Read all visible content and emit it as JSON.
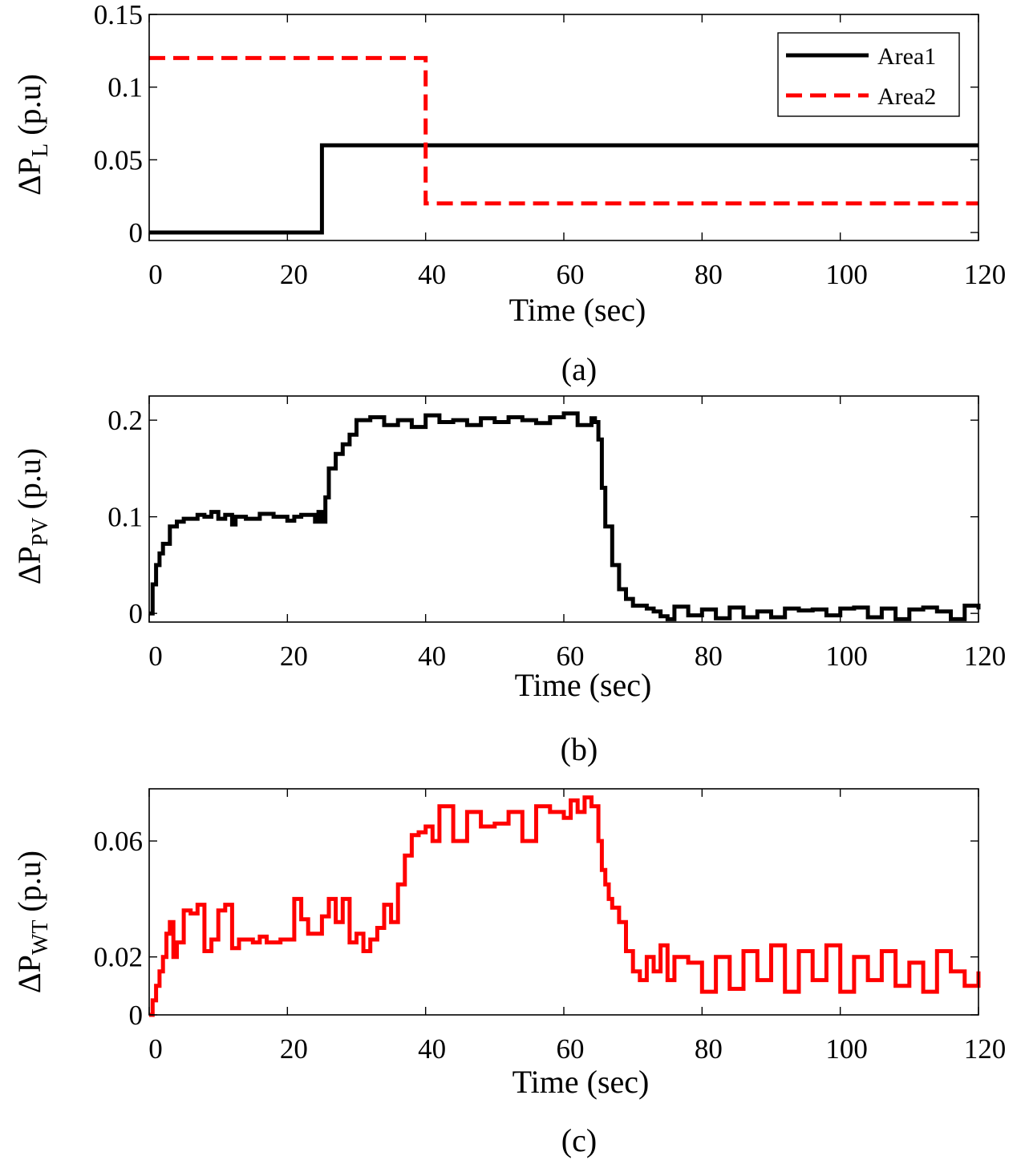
{
  "chart_data": [
    {
      "type": "line",
      "caption": "(a)",
      "xlabel": "Time (sec)",
      "ylabel": {
        "prefix": "ΔP",
        "subscript": "L",
        "suffix": " (p.u)"
      },
      "xlim": [
        0,
        120
      ],
      "ylim": [
        -0.0055,
        0.15
      ],
      "xticks": [
        0,
        20,
        40,
        60,
        80,
        100,
        120
      ],
      "yticks": [
        0,
        0.05,
        0.1,
        0.15
      ],
      "ytick_labels": [
        "0",
        "0.05",
        "0.1",
        "0.15"
      ],
      "legend_position": "top-right",
      "series": [
        {
          "name": "Area1",
          "color": "#000000",
          "dash": "solid",
          "x": [
            0,
            25,
            25,
            120
          ],
          "y": [
            0,
            0,
            0.06,
            0.06
          ]
        },
        {
          "name": "Area2",
          "color": "#ff0000",
          "dash": "dashed",
          "x": [
            0,
            40,
            40,
            120
          ],
          "y": [
            0.12,
            0.12,
            0.02,
            0.02
          ]
        }
      ]
    },
    {
      "type": "line",
      "caption": "(b)",
      "xlabel": "Time (sec)",
      "ylabel": {
        "prefix": "ΔP",
        "subscript": "PV",
        "suffix": " (p.u)"
      },
      "xlim": [
        0,
        120
      ],
      "ylim": [
        -0.009,
        0.225
      ],
      "xticks": [
        0,
        20,
        40,
        60,
        80,
        100,
        120
      ],
      "yticks": [
        0,
        0.1,
        0.2
      ],
      "ytick_labels": [
        "0",
        "0.1",
        "0.2"
      ],
      "series": [
        {
          "name": "ΔPPV",
          "color": "#000000",
          "dash": "solid",
          "x": [
            0,
            0.5,
            1,
            1.5,
            2,
            3,
            4,
            5,
            7,
            8,
            9,
            10,
            11,
            12,
            12.5,
            14,
            16,
            18,
            20,
            21,
            22,
            24,
            24.5,
            25,
            25.5,
            26,
            27,
            28,
            29,
            30,
            32,
            34,
            36,
            38,
            40,
            42,
            44,
            46,
            48,
            50,
            52,
            54,
            56,
            58,
            60,
            62,
            64,
            64.5,
            65,
            65.5,
            66,
            67,
            68,
            69,
            70,
            72,
            73,
            74,
            75,
            76,
            78,
            80,
            82,
            84,
            86,
            88,
            90,
            92,
            94,
            96,
            98,
            100,
            102,
            104,
            106,
            108,
            110,
            112,
            114,
            116,
            118,
            120
          ],
          "y": [
            0,
            0.03,
            0.05,
            0.062,
            0.072,
            0.09,
            0.095,
            0.098,
            0.102,
            0.1,
            0.105,
            0.098,
            0.102,
            0.092,
            0.1,
            0.098,
            0.103,
            0.1,
            0.096,
            0.1,
            0.102,
            0.095,
            0.105,
            0.095,
            0.12,
            0.15,
            0.165,
            0.175,
            0.185,
            0.2,
            0.203,
            0.195,
            0.2,
            0.193,
            0.205,
            0.198,
            0.2,
            0.195,
            0.202,
            0.198,
            0.203,
            0.2,
            0.197,
            0.203,
            0.207,
            0.195,
            0.202,
            0.198,
            0.18,
            0.13,
            0.09,
            0.05,
            0.025,
            0.015,
            0.008,
            0.005,
            0.002,
            -0.003,
            -0.006,
            0.007,
            -0.002,
            0.004,
            -0.005,
            0.006,
            -0.004,
            0.002,
            -0.004,
            0.005,
            0.003,
            0.004,
            -0.002,
            0.005,
            0.006,
            -0.004,
            0.005,
            -0.006,
            0.004,
            0.006,
            0.002,
            -0.006,
            0.008,
            0.004
          ]
        }
      ]
    },
    {
      "type": "line",
      "caption": "(c)",
      "xlabel": "Time (sec)",
      "ylabel": {
        "prefix": "ΔP",
        "subscript": "WT",
        "suffix": " (p.u)"
      },
      "xlim": [
        0,
        120
      ],
      "ylim": [
        0,
        0.078
      ],
      "xticks": [
        0,
        20,
        40,
        60,
        80,
        100,
        120
      ],
      "yticks": [
        0,
        0.02,
        0.06
      ],
      "ytick_labels": [
        "0",
        "0.02",
        "0.06"
      ],
      "series": [
        {
          "name": "ΔPWT",
          "color": "#ff0000",
          "dash": "solid",
          "x": [
            0,
            0.5,
            1,
            1.5,
            2,
            2.5,
            3,
            3.5,
            4,
            5,
            6,
            7,
            8,
            9,
            10,
            11,
            12,
            13,
            15,
            16,
            17,
            19,
            21,
            22,
            23,
            25,
            26,
            27,
            28,
            29,
            30,
            31,
            32,
            33,
            34,
            35,
            36,
            37,
            38,
            39,
            40,
            41,
            42,
            44,
            46,
            48,
            50,
            52,
            54,
            56,
            58,
            60,
            61,
            62,
            63,
            64,
            65,
            65.5,
            66,
            66.5,
            67,
            68,
            69,
            70,
            71,
            72,
            73,
            74,
            75,
            76,
            78,
            80,
            82,
            84,
            86,
            88,
            90,
            92,
            94,
            96,
            98,
            100,
            102,
            104,
            106,
            108,
            110,
            112,
            114,
            116,
            118,
            120
          ],
          "y": [
            0,
            0.005,
            0.01,
            0.015,
            0.02,
            0.028,
            0.032,
            0.02,
            0.025,
            0.036,
            0.035,
            0.038,
            0.022,
            0.026,
            0.036,
            0.038,
            0.023,
            0.026,
            0.025,
            0.027,
            0.025,
            0.026,
            0.04,
            0.033,
            0.028,
            0.034,
            0.04,
            0.032,
            0.04,
            0.025,
            0.028,
            0.022,
            0.026,
            0.03,
            0.038,
            0.032,
            0.045,
            0.055,
            0.062,
            0.063,
            0.065,
            0.06,
            0.072,
            0.06,
            0.07,
            0.065,
            0.066,
            0.07,
            0.06,
            0.072,
            0.07,
            0.068,
            0.074,
            0.07,
            0.075,
            0.072,
            0.06,
            0.05,
            0.045,
            0.04,
            0.037,
            0.032,
            0.022,
            0.015,
            0.012,
            0.02,
            0.015,
            0.024,
            0.012,
            0.02,
            0.018,
            0.008,
            0.02,
            0.009,
            0.022,
            0.012,
            0.024,
            0.008,
            0.022,
            0.012,
            0.024,
            0.008,
            0.02,
            0.012,
            0.022,
            0.01,
            0.018,
            0.008,
            0.022,
            0.015,
            0.01,
            0.015
          ]
        }
      ]
    }
  ]
}
